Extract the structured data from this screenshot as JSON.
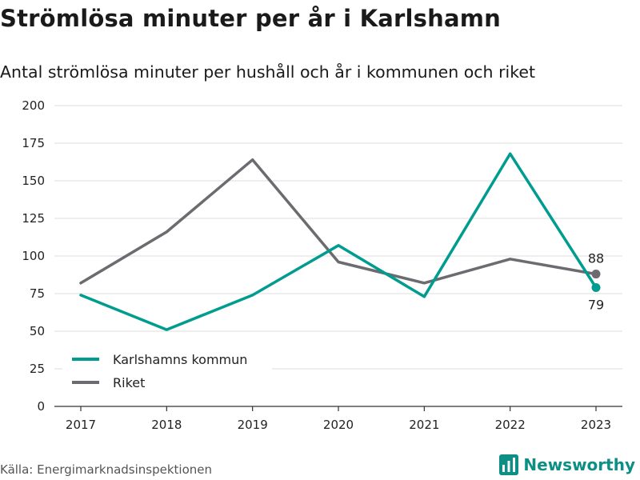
{
  "title": "Strömlösa minuter per år i Karlshamn",
  "subtitle": "Antal strömlösa minuter per hushåll och år i kommunen och riket",
  "source": "Källa: Energimarknadsinspektionen",
  "brand": {
    "name": "Newsworthy",
    "icon": "newsworthy-logo-icon",
    "color": "#0d8f86"
  },
  "chart_data": {
    "type": "line",
    "title": "Strömlösa minuter per år i Karlshamn",
    "subtitle": "Antal strömlösa minuter per hushåll och år i kommunen och riket",
    "x": [
      "2017",
      "2018",
      "2019",
      "2020",
      "2021",
      "2022",
      "2023"
    ],
    "ylim": [
      0,
      200
    ],
    "yticks": [
      0,
      25,
      50,
      75,
      100,
      125,
      150,
      175,
      200
    ],
    "grid": true,
    "legend_position": "bottom-left",
    "series": [
      {
        "name": "Karlshamns kommun",
        "color": "#009c8f",
        "values": [
          74,
          51,
          74,
          107,
          73,
          168,
          79
        ],
        "end_label": "79"
      },
      {
        "name": "Riket",
        "color": "#6b6b70",
        "values": [
          82,
          116,
          164,
          96,
          82,
          98,
          88
        ],
        "end_label": "88"
      }
    ]
  }
}
